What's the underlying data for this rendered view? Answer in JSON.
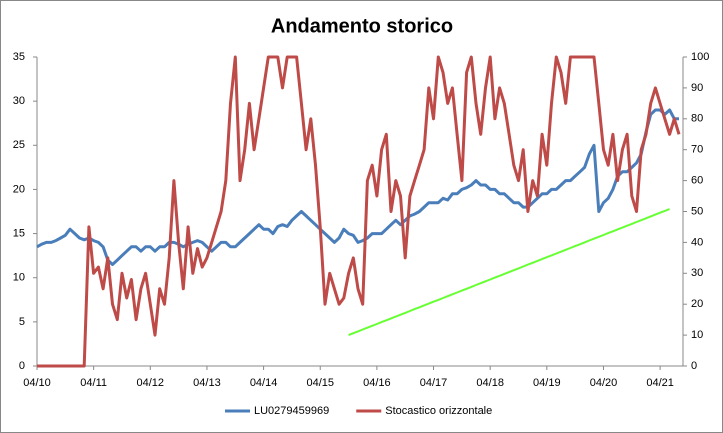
{
  "chart_data": {
    "type": "line",
    "title": "Andamento storico",
    "categories": [
      "04/10",
      null,
      null,
      null,
      null,
      null,
      null,
      null,
      null,
      null,
      null,
      null,
      "04/11",
      null,
      null,
      null,
      null,
      null,
      null,
      null,
      null,
      null,
      null,
      null,
      "04/12",
      null,
      null,
      null,
      null,
      null,
      null,
      null,
      null,
      null,
      null,
      null,
      "04/13",
      null,
      null,
      null,
      null,
      null,
      null,
      null,
      null,
      null,
      null,
      null,
      "04/14",
      null,
      null,
      null,
      null,
      null,
      null,
      null,
      null,
      null,
      null,
      null,
      "04/15",
      null,
      null,
      null,
      null,
      null,
      null,
      null,
      null,
      null,
      null,
      null,
      "04/16",
      null,
      null,
      null,
      null,
      null,
      null,
      null,
      null,
      null,
      null,
      null,
      "04/17",
      null,
      null,
      null,
      null,
      null,
      null,
      null,
      null,
      null,
      null,
      null,
      "04/18",
      null,
      null,
      null,
      null,
      null,
      null,
      null,
      null,
      null,
      null,
      null,
      "04/19",
      null,
      null,
      null,
      null,
      null,
      null,
      null,
      null,
      null,
      null,
      null,
      "04/20",
      null,
      null,
      null,
      null,
      null,
      null,
      null,
      null,
      null,
      null,
      null,
      "04/21",
      null,
      null,
      null,
      null
    ],
    "ylim": [
      0,
      35
    ],
    "yticks": [
      0,
      5,
      10,
      15,
      20,
      25,
      30,
      35
    ],
    "y2lim": [
      0,
      100
    ],
    "y2ticks": [
      0,
      10,
      20,
      30,
      40,
      50,
      60,
      70,
      80,
      90,
      100
    ],
    "grid": false,
    "legend": "bottom",
    "series": [
      {
        "name": "LU0279459969",
        "color": "#4a7ebb",
        "values": [
          13.5,
          13.8,
          14,
          14,
          14.2,
          14.5,
          14.8,
          15.5,
          15,
          14.5,
          14.3,
          14.5,
          14.2,
          14,
          13.5,
          12,
          11.5,
          12,
          12.5,
          13,
          13.5,
          13.5,
          13,
          13.5,
          13.5,
          13,
          13.5,
          13.5,
          14,
          14,
          13.8,
          13.5,
          13.8,
          14,
          14.2,
          14,
          13.5,
          13,
          13.5,
          14,
          14,
          13.5,
          13.5,
          14,
          14.5,
          15,
          15.5,
          16,
          15.5,
          15.5,
          15,
          15.8,
          16,
          15.8,
          16.5,
          17,
          17.5,
          17,
          16.5,
          16,
          15.5,
          15,
          14.5,
          14,
          14.5,
          15.5,
          15,
          14.8,
          14,
          14.2,
          14.5,
          15,
          15,
          15,
          15.5,
          16,
          16.5,
          16,
          16.5,
          17,
          17.2,
          17.5,
          18,
          18.5,
          18.5,
          18.5,
          19,
          18.8,
          19.5,
          19.5,
          20,
          20.2,
          20.5,
          21,
          20.5,
          20.5,
          20,
          20,
          19.5,
          19.5,
          19,
          18.5,
          18.5,
          18,
          18,
          18.5,
          19,
          19.5,
          19.5,
          20,
          20,
          20.5,
          21,
          21,
          21.5,
          22,
          22.5,
          24,
          25,
          17.5,
          18.5,
          19,
          20,
          21.5,
          22,
          22,
          22.5,
          23,
          24,
          26.5,
          28.5,
          29,
          29,
          28.5,
          29,
          28,
          28
        ]
      },
      {
        "name": "Stocastico orizzontale",
        "color": "#be4b48",
        "axis": "y2",
        "values": [
          0,
          0,
          0,
          0,
          0,
          0,
          0,
          0,
          0,
          0,
          0,
          45,
          30,
          32,
          25,
          35,
          20,
          15,
          30,
          22,
          28,
          15,
          25,
          30,
          20,
          10,
          25,
          20,
          35,
          60,
          40,
          25,
          45,
          30,
          38,
          32,
          35,
          40,
          45,
          50,
          60,
          85,
          100,
          60,
          70,
          85,
          70,
          80,
          90,
          100,
          100,
          100,
          90,
          100,
          100,
          100,
          85,
          70,
          80,
          65,
          45,
          20,
          30,
          25,
          20,
          22,
          30,
          35,
          25,
          20,
          60,
          65,
          55,
          70,
          75,
          50,
          60,
          55,
          35,
          55,
          60,
          65,
          70,
          90,
          80,
          100,
          95,
          85,
          90,
          75,
          60,
          95,
          100,
          85,
          75,
          90,
          100,
          80,
          90,
          85,
          75,
          65,
          60,
          70,
          50,
          60,
          55,
          75,
          65,
          85,
          100,
          95,
          85,
          100,
          100,
          100,
          100,
          100,
          100,
          85,
          70,
          65,
          75,
          60,
          70,
          75,
          55,
          50,
          70,
          75,
          85,
          90,
          85,
          80,
          75,
          80,
          75
        ]
      },
      {
        "color": "#66ff33",
        "axis": "y2",
        "values": [
          null,
          null,
          null,
          null,
          null,
          null,
          null,
          null,
          null,
          null,
          null,
          null,
          null,
          null,
          null,
          null,
          null,
          null,
          null,
          null,
          null,
          null,
          null,
          null,
          null,
          null,
          null,
          null,
          null,
          null,
          null,
          null,
          null,
          null,
          null,
          null,
          null,
          null,
          null,
          null,
          null,
          null,
          null,
          null,
          null,
          null,
          null,
          null,
          null,
          null,
          null,
          null,
          null,
          null,
          null,
          null,
          null,
          null,
          null,
          null,
          null,
          null,
          null,
          null,
          null,
          null,
          10,
          10.6,
          11.2,
          11.8,
          12.4,
          13,
          13.6,
          14.2,
          14.8,
          15.4,
          16,
          16.6,
          17.2,
          17.8,
          18.4,
          19,
          19.6,
          20.2,
          20.8,
          21.4,
          22,
          22.6,
          23.2,
          23.8,
          24.4,
          25,
          25.6,
          26.2,
          26.8,
          27.4,
          28,
          28.6,
          29.2,
          29.8,
          30.4,
          31,
          31.6,
          32.2,
          32.8,
          33.4,
          34,
          34.6,
          35.2,
          35.8,
          36.4,
          37,
          37.6,
          38.2,
          38.8,
          39.4,
          40,
          40.6,
          41.2,
          41.8,
          42.4,
          43,
          43.6,
          44.2,
          44.8,
          45.4,
          46,
          46.6,
          47.2,
          47.8,
          48.4,
          49,
          49.6,
          50.2,
          50.8,
          null,
          null
        ]
      }
    ]
  }
}
